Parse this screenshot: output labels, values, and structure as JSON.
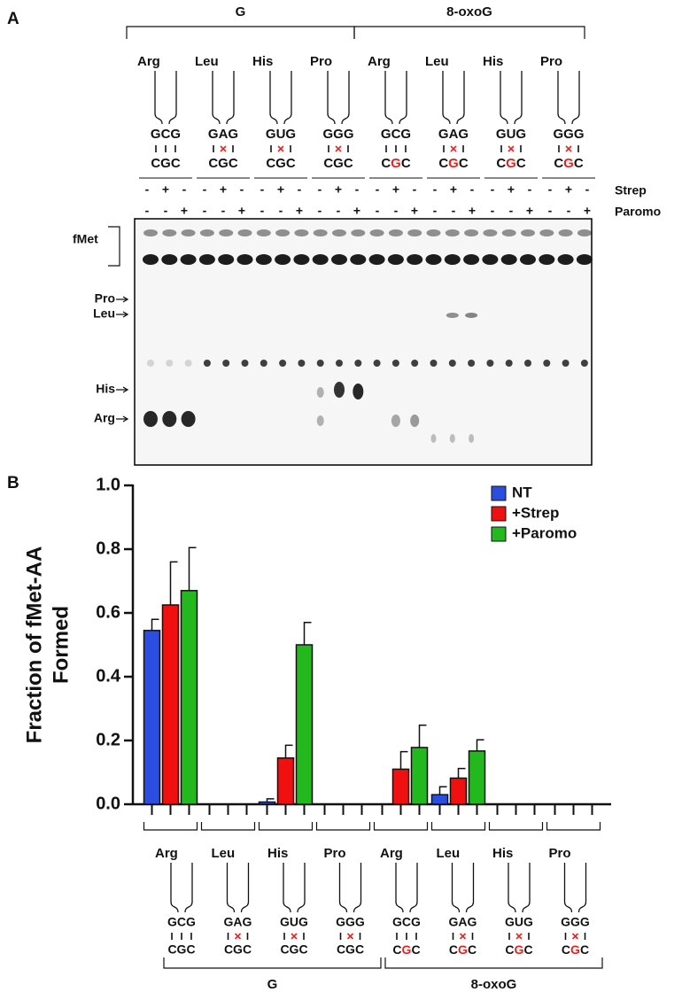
{
  "panel_a": {
    "label": "A",
    "groups": [
      {
        "label": "G",
        "constructs": [
          {
            "aa": "Arg",
            "codon": "GCG",
            "anticodon": "CGC",
            "mismatch": false
          },
          {
            "aa": "Leu",
            "codon": "GAG",
            "anticodon": "CGC",
            "mismatch": true
          },
          {
            "aa": "His",
            "codon": "GUG",
            "anticodon": "CGC",
            "mismatch": true
          },
          {
            "aa": "Pro",
            "codon": "GGG",
            "anticodon": "CGC",
            "mismatch": true
          }
        ]
      },
      {
        "label": "8-oxoG",
        "modified_color": "#e8231f",
        "constructs": [
          {
            "aa": "Arg",
            "codon": "GCG",
            "anticodon": "CGC",
            "mismatch": false
          },
          {
            "aa": "Leu",
            "codon": "GAG",
            "anticodon": "CGC",
            "mismatch": true
          },
          {
            "aa": "His",
            "codon": "GUG",
            "anticodon": "CGC",
            "mismatch": true
          },
          {
            "aa": "Pro",
            "codon": "GGG",
            "anticodon": "CGC",
            "mismatch": true
          }
        ]
      }
    ],
    "mismatch_color": "#e8231f",
    "treatments": [
      {
        "label": "Strep",
        "signs": [
          "-",
          "+",
          "-"
        ]
      },
      {
        "label": "Paromo",
        "signs": [
          "-",
          "-",
          "+"
        ]
      }
    ],
    "gel_labels": [
      "fMet",
      "Pro",
      "Leu",
      "His",
      "Arg"
    ]
  },
  "panel_b_label": "B",
  "chart_data": {
    "type": "bar",
    "ylabel": [
      "Fraction of fMet-AA",
      "Formed"
    ],
    "categories": [
      "Arg",
      "Leu",
      "His",
      "Pro",
      "Arg",
      "Leu",
      "His",
      "Pro"
    ],
    "series": [
      {
        "name": "NT",
        "color": "#2b4de0",
        "values": [
          0.545,
          0,
          0.007,
          0,
          0,
          0.03,
          0,
          0
        ],
        "errors": [
          0.035,
          0,
          0.01,
          0,
          0,
          0.025,
          0,
          0
        ]
      },
      {
        "name": "+Strep",
        "color": "#f01010",
        "values": [
          0.625,
          0,
          0.145,
          0,
          0.11,
          0.082,
          0,
          0
        ],
        "errors": [
          0.135,
          0,
          0.04,
          0,
          0.055,
          0.03,
          0,
          0
        ]
      },
      {
        "name": "+Paromo",
        "color": "#22b81e",
        "values": [
          0.67,
          0,
          0.5,
          0,
          0.178,
          0.167,
          0,
          0
        ],
        "errors": [
          0.135,
          0,
          0.07,
          0,
          0.07,
          0.035,
          0,
          0
        ]
      }
    ],
    "ylim": [
      0,
      1
    ],
    "yticks": [
      {
        "value": 0,
        "label": "0.0"
      },
      0.2,
      0.4,
      0.6,
      0.8,
      {
        "value": 1,
        "label": "1.0"
      }
    ],
    "legend": "top-right"
  }
}
